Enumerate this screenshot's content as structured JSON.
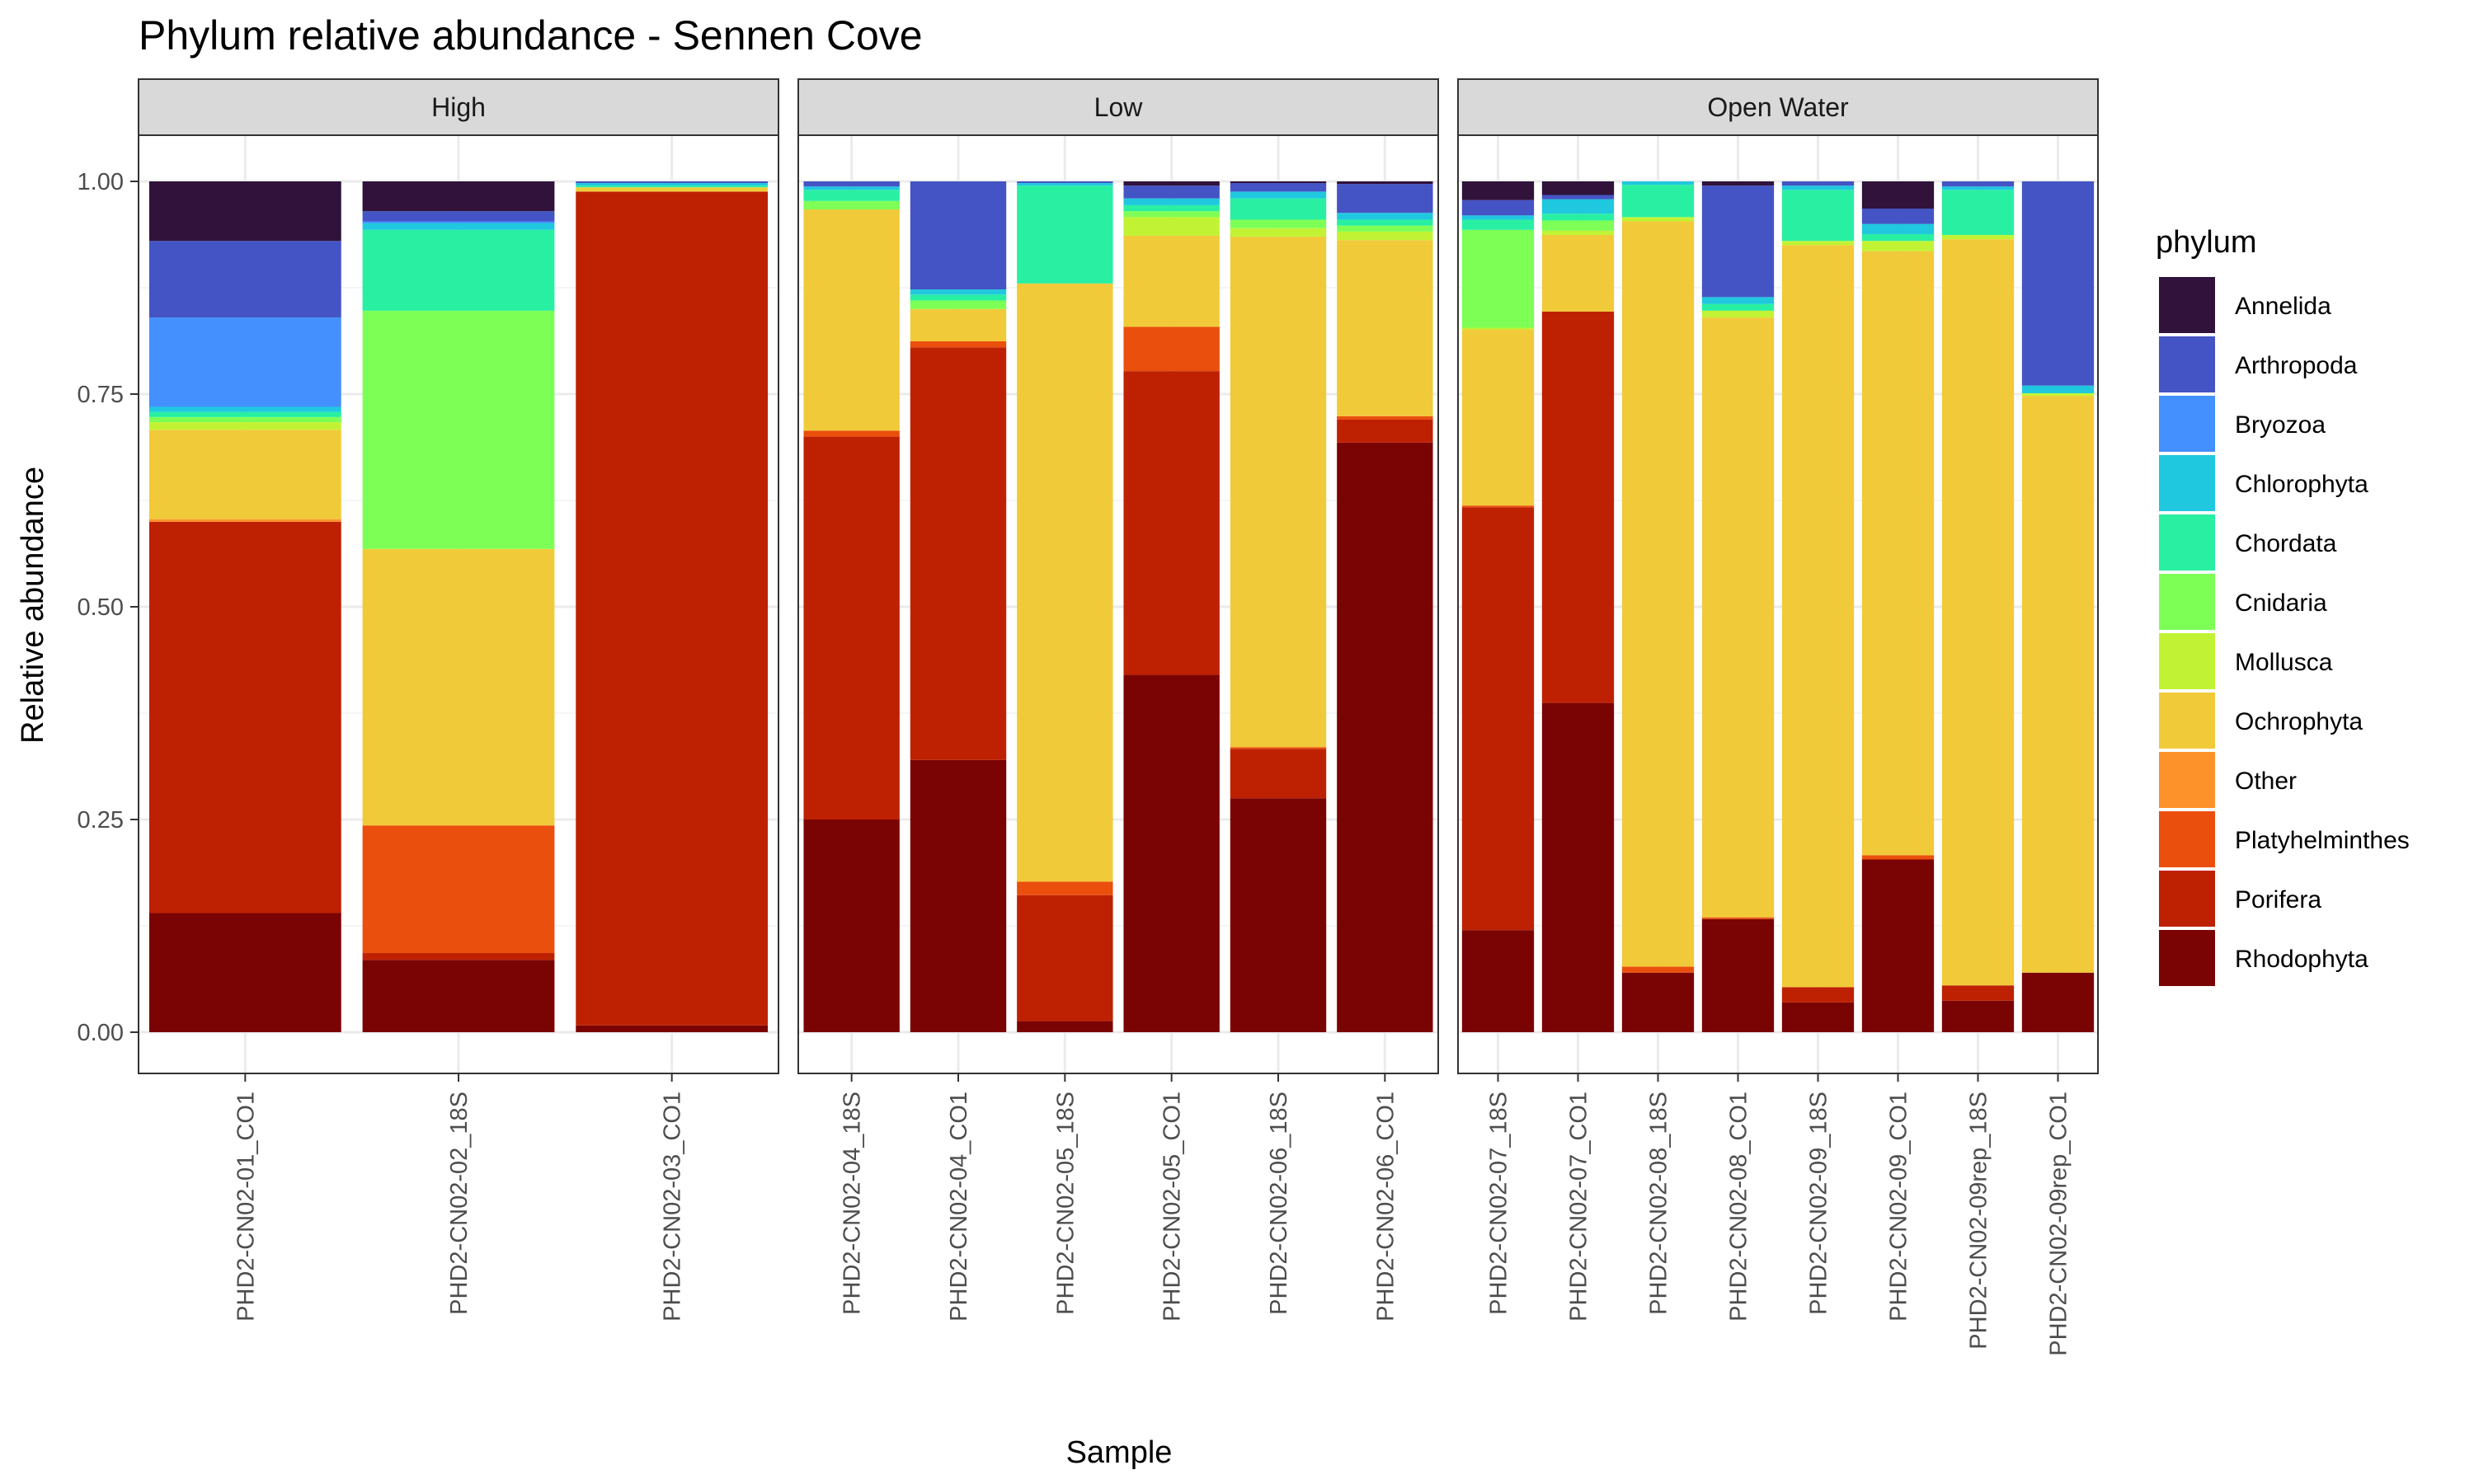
{
  "chart_data": {
    "type": "bar",
    "stacked": true,
    "title": "Phylum relative abundance - Sennen Cove",
    "xlabel": "Sample",
    "ylabel": "Relative abundance",
    "ylim": [
      0,
      1
    ],
    "yticks": [
      "0.00",
      "0.25",
      "0.50",
      "0.75",
      "1.00"
    ],
    "grid": true,
    "legend": {
      "title": "phylum",
      "position": "right",
      "order": [
        "Annelida",
        "Arthropoda",
        "Bryozoa",
        "Chlorophyta",
        "Chordata",
        "Cnidaria",
        "Mollusca",
        "Ochrophyta",
        "Other",
        "Platyhelminthes",
        "Porifera",
        "Rhodophyta"
      ]
    },
    "colors": {
      "Annelida": "#30123B",
      "Arthropoda": "#4454C4",
      "Bryozoa": "#4490FE",
      "Chlorophyta": "#1FC8DE",
      "Chordata": "#29EFA2",
      "Cnidaria": "#7DFF56",
      "Mollusca": "#C1F334",
      "Ochrophyta": "#F1CA3A",
      "Other": "#FE922A",
      "Platyhelminthes": "#EA4F0D",
      "Porifera": "#BE2102",
      "Rhodophyta": "#7A0403"
    },
    "stack_order": [
      "Rhodophyta",
      "Porifera",
      "Platyhelminthes",
      "Other",
      "Ochrophyta",
      "Mollusca",
      "Cnidaria",
      "Chordata",
      "Chlorophyta",
      "Bryozoa",
      "Arthropoda",
      "Annelida"
    ],
    "facets": [
      {
        "name": "High",
        "samples": [
          {
            "name": "PHD2-CN02-01_CO1",
            "values": {
              "Rhodophyta": 0.14,
              "Porifera": 0.46,
              "Platyhelminthes": 0.0,
              "Other": 0.003,
              "Ochrophyta": 0.105,
              "Mollusca": 0.009,
              "Cnidaria": 0.006,
              "Chordata": 0.006,
              "Chlorophyta": 0.006,
              "Bryozoa": 0.105,
              "Arthropoda": 0.09,
              "Annelida": 0.07
            }
          },
          {
            "name": "PHD2-CN02-02_18S",
            "values": {
              "Rhodophyta": 0.085,
              "Porifera": 0.008,
              "Platyhelminthes": 0.15,
              "Other": 0.0,
              "Ochrophyta": 0.325,
              "Mollusca": 0.0,
              "Cnidaria": 0.28,
              "Chordata": 0.095,
              "Chlorophyta": 0.008,
              "Bryozoa": 0.002,
              "Arthropoda": 0.012,
              "Annelida": 0.035
            }
          },
          {
            "name": "PHD2-CN02-03_CO1",
            "values": {
              "Rhodophyta": 0.008,
              "Porifera": 0.98,
              "Platyhelminthes": 0.0,
              "Other": 0.0,
              "Ochrophyta": 0.005,
              "Mollusca": 0.0,
              "Cnidaria": 0.0,
              "Chordata": 0.002,
              "Chlorophyta": 0.003,
              "Bryozoa": 0.0,
              "Arthropoda": 0.002,
              "Annelida": 0.0
            }
          }
        ]
      },
      {
        "name": "Low",
        "samples": [
          {
            "name": "PHD2-CN02-04_18S",
            "values": {
              "Rhodophyta": 0.25,
              "Porifera": 0.45,
              "Platyhelminthes": 0.007,
              "Other": 0.0,
              "Ochrophyta": 0.26,
              "Mollusca": 0.0,
              "Cnidaria": 0.01,
              "Chordata": 0.013,
              "Chlorophyta": 0.004,
              "Bryozoa": 0.0,
              "Arthropoda": 0.006,
              "Annelida": 0.0
            }
          },
          {
            "name": "PHD2-CN02-04_CO1",
            "values": {
              "Rhodophyta": 0.32,
              "Porifera": 0.485,
              "Platyhelminthes": 0.007,
              "Other": 0.0,
              "Ochrophyta": 0.038,
              "Mollusca": 0.0,
              "Cnidaria": 0.01,
              "Chordata": 0.007,
              "Chlorophyta": 0.006,
              "Bryozoa": 0.0,
              "Arthropoda": 0.127,
              "Annelida": 0.0
            }
          },
          {
            "name": "PHD2-CN02-05_18S",
            "values": {
              "Rhodophyta": 0.013,
              "Porifera": 0.148,
              "Platyhelminthes": 0.016,
              "Other": 0.0,
              "Ochrophyta": 0.703,
              "Mollusca": 0.0,
              "Cnidaria": 0.0,
              "Chordata": 0.115,
              "Chlorophyta": 0.003,
              "Bryozoa": 0.0,
              "Arthropoda": 0.002,
              "Annelida": 0.0
            }
          },
          {
            "name": "PHD2-CN02-05_CO1",
            "values": {
              "Rhodophyta": 0.42,
              "Porifera": 0.357,
              "Platyhelminthes": 0.052,
              "Other": 0.0,
              "Ochrophyta": 0.107,
              "Mollusca": 0.022,
              "Cnidaria": 0.007,
              "Chordata": 0.007,
              "Chlorophyta": 0.008,
              "Bryozoa": 0.0,
              "Arthropoda": 0.015,
              "Annelida": 0.005
            }
          },
          {
            "name": "PHD2-CN02-06_18S",
            "values": {
              "Rhodophyta": 0.275,
              "Porifera": 0.058,
              "Platyhelminthes": 0.002,
              "Other": 0.0,
              "Ochrophyta": 0.6,
              "Mollusca": 0.01,
              "Cnidaria": 0.01,
              "Chordata": 0.025,
              "Chlorophyta": 0.008,
              "Bryozoa": 0.0,
              "Arthropoda": 0.01,
              "Annelida": 0.002
            }
          },
          {
            "name": "PHD2-CN02-06_CO1",
            "values": {
              "Rhodophyta": 0.693,
              "Porifera": 0.027,
              "Platyhelminthes": 0.004,
              "Other": 0.0,
              "Ochrophyta": 0.207,
              "Mollusca": 0.01,
              "Cnidaria": 0.007,
              "Chordata": 0.007,
              "Chlorophyta": 0.008,
              "Bryozoa": 0.0,
              "Arthropoda": 0.034,
              "Annelida": 0.003
            }
          }
        ]
      },
      {
        "name": "Open Water",
        "samples": [
          {
            "name": "PHD2-CN02-07_18S",
            "values": {
              "Rhodophyta": 0.12,
              "Porifera": 0.497,
              "Platyhelminthes": 0.002,
              "Other": 0.0,
              "Ochrophyta": 0.207,
              "Mollusca": 0.002,
              "Cnidaria": 0.115,
              "Chordata": 0.012,
              "Chlorophyta": 0.005,
              "Bryozoa": 0.0,
              "Arthropoda": 0.018,
              "Annelida": 0.022
            }
          },
          {
            "name": "PHD2-CN02-07_CO1",
            "values": {
              "Rhodophyta": 0.387,
              "Porifera": 0.46,
              "Platyhelminthes": 0.0,
              "Other": 0.0,
              "Ochrophyta": 0.09,
              "Mollusca": 0.005,
              "Cnidaria": 0.012,
              "Chordata": 0.008,
              "Chlorophyta": 0.017,
              "Bryozoa": 0.0,
              "Arthropoda": 0.005,
              "Annelida": 0.016
            }
          },
          {
            "name": "PHD2-CN02-08_18S",
            "values": {
              "Rhodophyta": 0.07,
              "Porifera": 0.0,
              "Platyhelminthes": 0.007,
              "Other": 0.0,
              "Ochrophyta": 0.876,
              "Mollusca": 0.005,
              "Cnidaria": 0.0,
              "Chordata": 0.038,
              "Chlorophyta": 0.004,
              "Bryozoa": 0.0,
              "Arthropoda": 0.0,
              "Annelida": 0.0
            }
          },
          {
            "name": "PHD2-CN02-08_CO1",
            "values": {
              "Rhodophyta": 0.133,
              "Porifera": 0.0,
              "Platyhelminthes": 0.002,
              "Other": 0.0,
              "Ochrophyta": 0.705,
              "Mollusca": 0.008,
              "Cnidaria": 0.0,
              "Chordata": 0.008,
              "Chlorophyta": 0.008,
              "Bryozoa": 0.0,
              "Arthropoda": 0.131,
              "Annelida": 0.005
            }
          },
          {
            "name": "PHD2-CN02-09_18S",
            "values": {
              "Rhodophyta": 0.035,
              "Porifera": 0.018,
              "Platyhelminthes": 0.0,
              "Other": 0.0,
              "Ochrophyta": 0.872,
              "Mollusca": 0.005,
              "Cnidaria": 0.0,
              "Chordata": 0.06,
              "Chlorophyta": 0.005,
              "Bryozoa": 0.0,
              "Arthropoda": 0.005,
              "Annelida": 0.0
            }
          },
          {
            "name": "PHD2-CN02-09_CO1",
            "values": {
              "Rhodophyta": 0.203,
              "Porifera": 0.0,
              "Platyhelminthes": 0.005,
              "Other": 0.0,
              "Ochrophyta": 0.71,
              "Mollusca": 0.012,
              "Cnidaria": 0.0,
              "Chordata": 0.008,
              "Chlorophyta": 0.012,
              "Bryozoa": 0.0,
              "Arthropoda": 0.018,
              "Annelida": 0.032
            }
          },
          {
            "name": "PHD2-CN02-09rep_18S",
            "values": {
              "Rhodophyta": 0.037,
              "Porifera": 0.018,
              "Platyhelminthes": 0.0,
              "Other": 0.0,
              "Ochrophyta": 0.877,
              "Mollusca": 0.005,
              "Cnidaria": 0.0,
              "Chordata": 0.053,
              "Chlorophyta": 0.004,
              "Bryozoa": 0.0,
              "Arthropoda": 0.006,
              "Annelida": 0.0
            }
          },
          {
            "name": "PHD2-CN02-09rep_CO1",
            "values": {
              "Rhodophyta": 0.07,
              "Porifera": 0.0,
              "Platyhelminthes": 0.0,
              "Other": 0.0,
              "Ochrophyta": 0.678,
              "Mollusca": 0.003,
              "Cnidaria": 0.0,
              "Chordata": 0.0,
              "Chlorophyta": 0.009,
              "Bryozoa": 0.0,
              "Arthropoda": 0.24,
              "Annelida": 0.0
            }
          }
        ]
      }
    ]
  }
}
